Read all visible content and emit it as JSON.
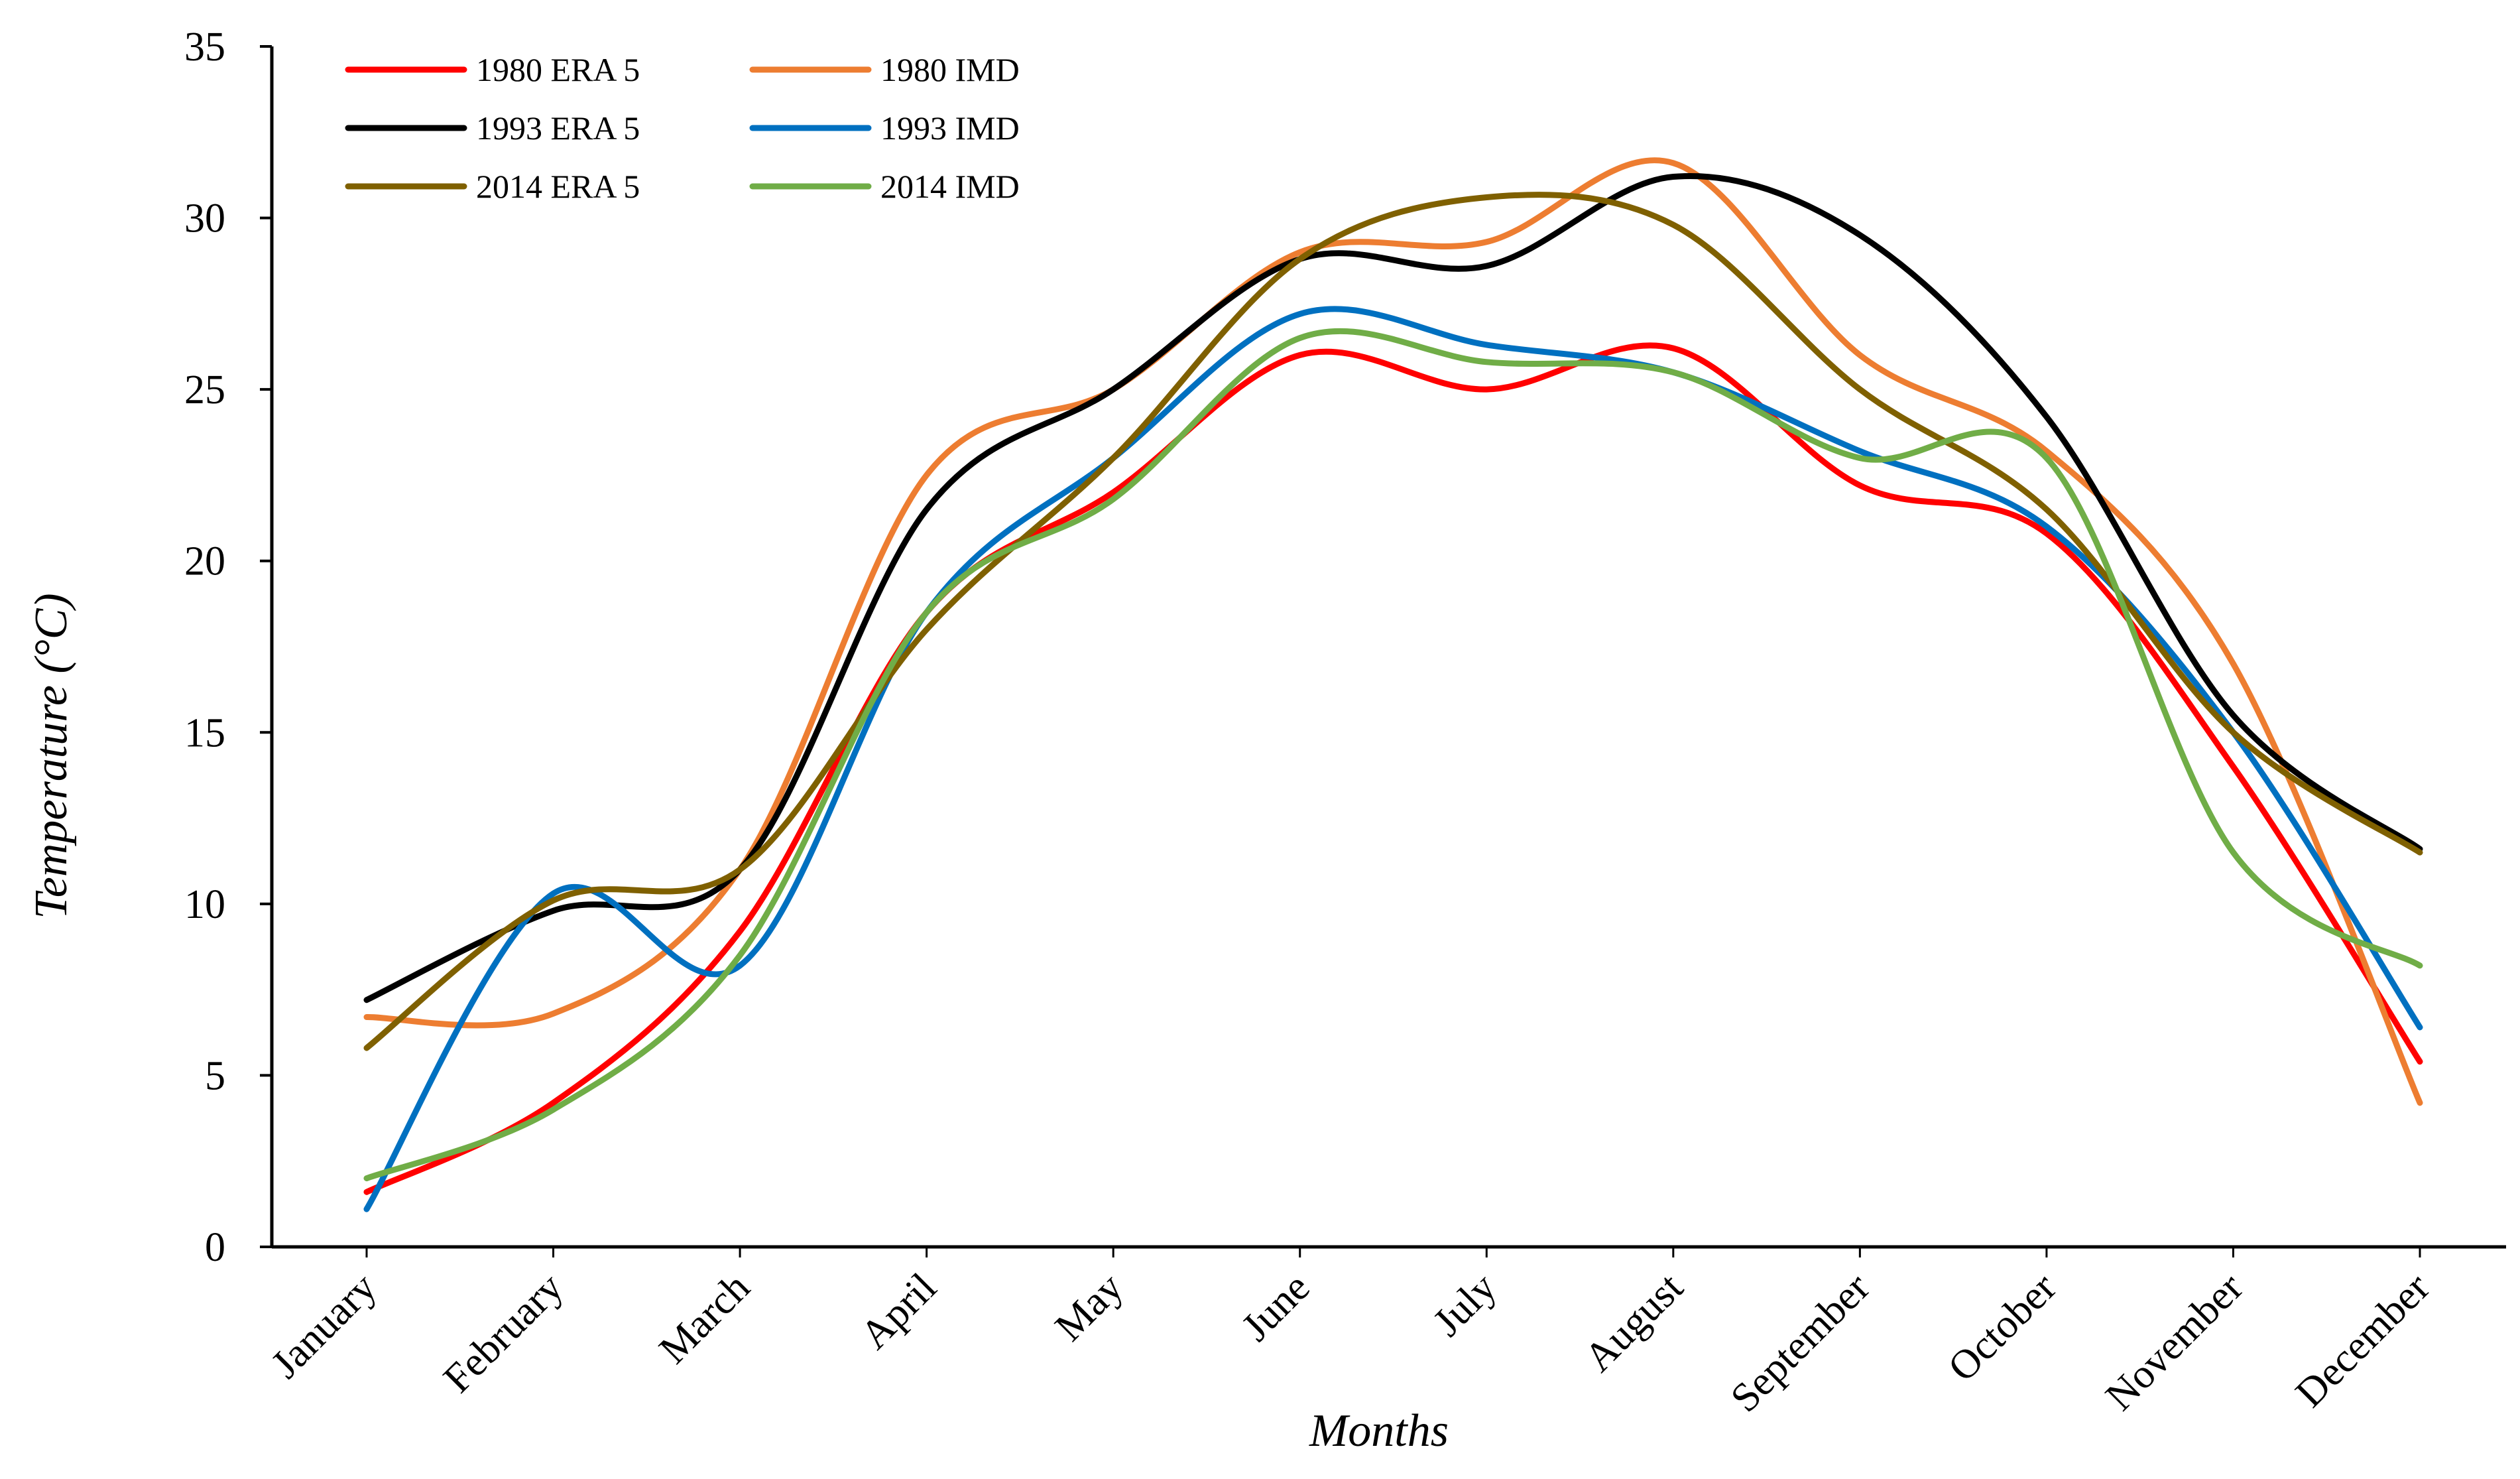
{
  "chart_data": {
    "type": "line",
    "title": "",
    "xlabel": "Months",
    "ylabel": "Temperature (°C)",
    "ylim": [
      0,
      35
    ],
    "yticks": [
      "0",
      "5",
      "10",
      "15",
      "20",
      "25",
      "30",
      "35"
    ],
    "ytick_values": [
      0,
      5,
      10,
      15,
      20,
      25,
      30,
      35
    ],
    "grid": false,
    "legend_position": "top-left",
    "categories": [
      "January",
      "February",
      "March",
      "April",
      "May",
      "June",
      "July",
      "August",
      "September",
      "October",
      "November",
      "December"
    ],
    "series": [
      {
        "name": "1980 ERA 5",
        "color": "#ff0000",
        "values": [
          1.6,
          4.2,
          9.2,
          18.5,
          22.0,
          26.0,
          25.0,
          26.2,
          22.2,
          20.8,
          14.0,
          5.4
        ]
      },
      {
        "name": "1980 IMD",
        "color": "#ed7d31",
        "values": [
          6.7,
          6.8,
          11.0,
          22.5,
          25.0,
          29.0,
          29.3,
          31.6,
          26.0,
          23.2,
          17.0,
          4.2
        ]
      },
      {
        "name": "1993 ERA 5",
        "color": "#000000",
        "values": [
          7.2,
          9.8,
          11.0,
          21.5,
          25.0,
          28.8,
          28.6,
          31.2,
          29.5,
          24.2,
          15.5,
          11.6
        ]
      },
      {
        "name": "1993 IMD",
        "color": "#0070c0",
        "values": [
          1.1,
          10.3,
          8.2,
          18.5,
          23.0,
          27.2,
          26.3,
          25.5,
          23.2,
          21.0,
          15.0,
          6.4
        ]
      },
      {
        "name": "2014 ERA 5",
        "color": "#7f6000",
        "values": [
          5.8,
          10.1,
          11.0,
          18.0,
          23.0,
          28.8,
          30.6,
          29.8,
          25.0,
          21.5,
          15.0,
          11.5
        ]
      },
      {
        "name": "2014 IMD",
        "color": "#70ad47",
        "values": [
          2.0,
          4.0,
          8.5,
          18.5,
          21.8,
          26.5,
          25.8,
          25.5,
          23.0,
          23.0,
          11.5,
          8.2
        ]
      }
    ]
  }
}
